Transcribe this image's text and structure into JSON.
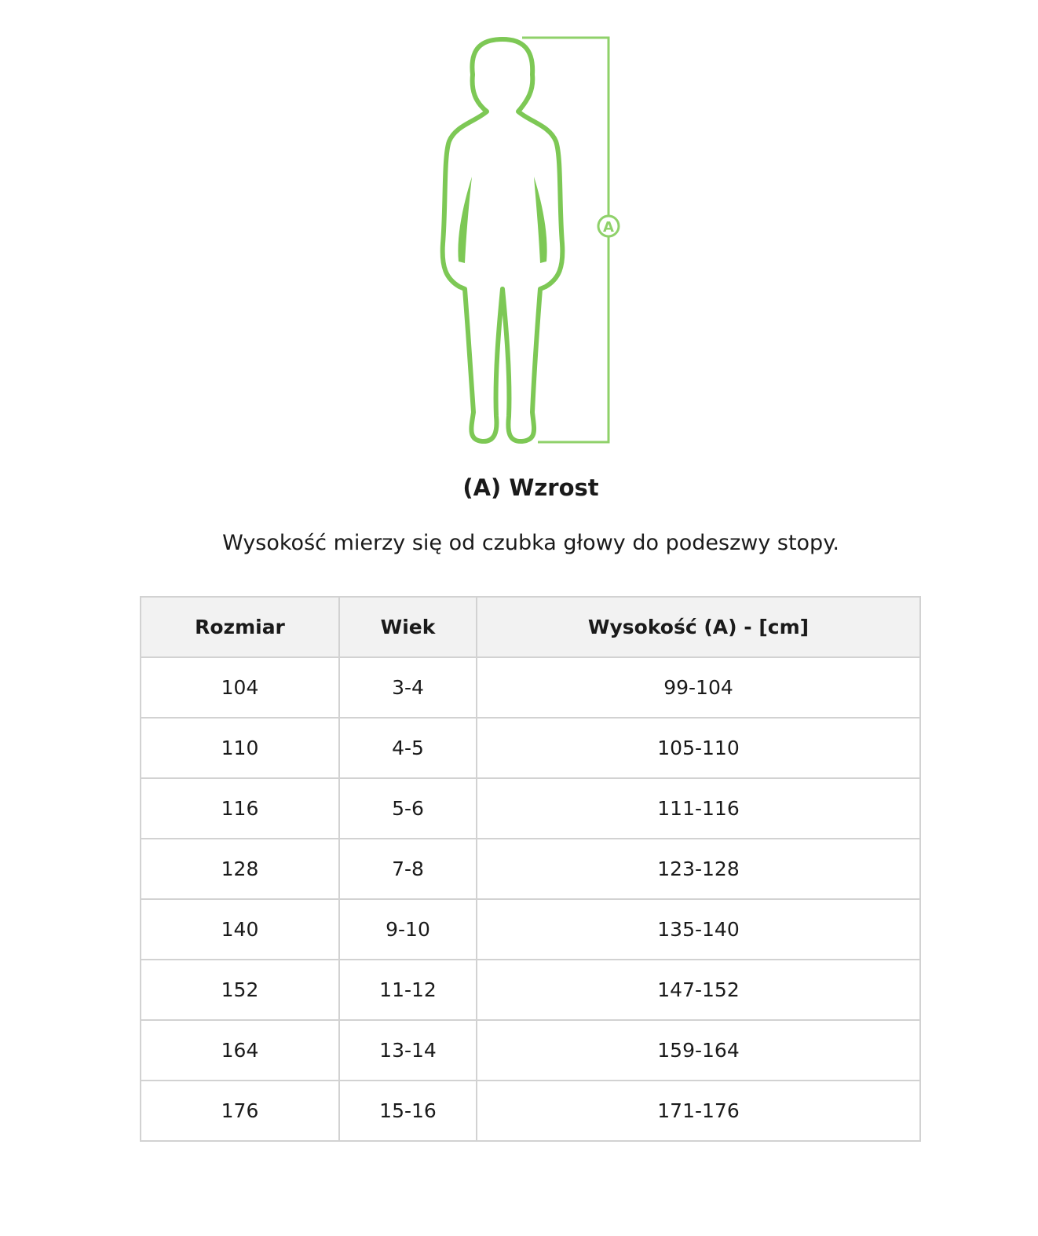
{
  "figure": {
    "marker_label": "A",
    "color": "#7dc855"
  },
  "title": "(A) Wzrost",
  "subtitle": "Wysokość mierzy się od czubka głowy do podeszwy stopy.",
  "table": {
    "headers": [
      "Rozmiar",
      "Wiek",
      "Wysokość (A) - [cm]"
    ],
    "rows": [
      [
        "104",
        "3-4",
        "99-104"
      ],
      [
        "110",
        "4-5",
        "105-110"
      ],
      [
        "116",
        "5-6",
        "111-116"
      ],
      [
        "128",
        "7-8",
        "123-128"
      ],
      [
        "140",
        "9-10",
        "135-140"
      ],
      [
        "152",
        "11-12",
        "147-152"
      ],
      [
        "164",
        "13-14",
        "159-164"
      ],
      [
        "176",
        "15-16",
        "171-176"
      ]
    ]
  }
}
